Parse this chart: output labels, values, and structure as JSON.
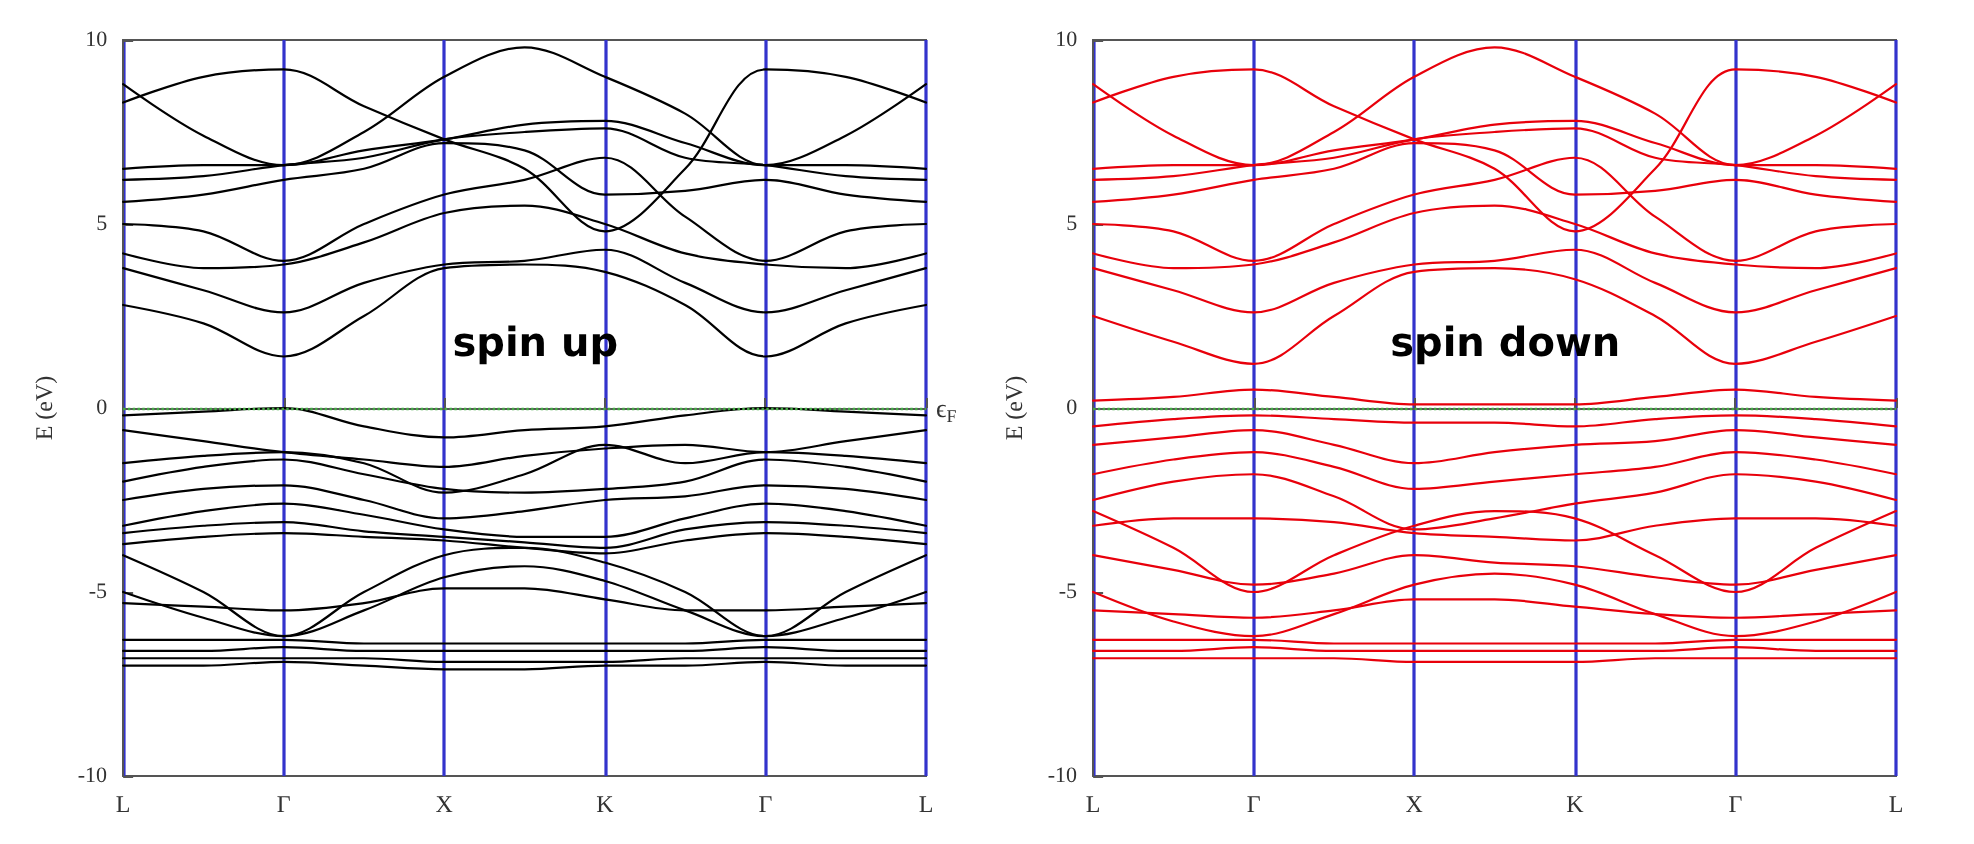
{
  "chart_data": [
    {
      "type": "line",
      "ylabel": "E (eV)",
      "line_style": "solid",
      "ylim": [
        -10,
        10
      ],
      "yticks": [
        -10,
        -5,
        0,
        5,
        10
      ],
      "categories": [
        "L",
        null,
        "Γ",
        null,
        "X",
        null,
        "K",
        null,
        "Γ",
        null,
        "L"
      ],
      "annotations": [
        "spin up"
      ],
      "grid": "x",
      "ref_lines": [
        {
          "axis": "y",
          "value": 0,
          "label": "ϵ$_{F}$",
          "color": "#44aa44",
          "line_style": "dotted"
        }
      ],
      "series": [
        {
          "color": "#000000",
          "values": [
            2.8,
            2.3,
            1.4,
            2.5,
            3.8,
            3.9,
            3.7,
            2.8,
            1.4,
            2.3,
            2.8
          ]
        },
        {
          "color": "#000000",
          "values": [
            3.8,
            3.2,
            2.6,
            3.4,
            3.9,
            4.0,
            4.3,
            3.4,
            2.6,
            3.2,
            3.8
          ]
        },
        {
          "color": "#000000",
          "values": [
            4.2,
            3.8,
            3.9,
            4.5,
            5.3,
            5.5,
            5.0,
            4.2,
            3.9,
            3.8,
            4.2
          ]
        },
        {
          "color": "#000000",
          "values": [
            5.0,
            4.8,
            4.0,
            5.0,
            5.8,
            6.2,
            6.8,
            5.2,
            4.0,
            4.8,
            5.0
          ]
        },
        {
          "color": "#000000",
          "values": [
            5.6,
            5.8,
            6.2,
            6.5,
            7.2,
            7.0,
            5.8,
            5.9,
            6.2,
            5.8,
            5.6
          ]
        },
        {
          "color": "#000000",
          "values": [
            6.2,
            6.3,
            6.6,
            6.8,
            7.3,
            7.5,
            7.6,
            6.8,
            6.6,
            6.3,
            6.2
          ]
        },
        {
          "color": "#000000",
          "values": [
            6.5,
            6.6,
            6.6,
            7.0,
            7.3,
            7.7,
            7.8,
            7.2,
            6.6,
            6.6,
            6.5
          ]
        },
        {
          "color": "#000000",
          "values": [
            8.3,
            9.0,
            9.2,
            8.2,
            7.3,
            6.5,
            4.8,
            6.5,
            9.2,
            9.0,
            8.3
          ]
        },
        {
          "color": "#000000",
          "values": [
            8.8,
            7.4,
            6.6,
            7.5,
            9.0,
            9.8,
            9.0,
            8.0,
            6.6,
            7.4,
            8.8
          ]
        },
        {
          "color": "#000000",
          "values": [
            -0.2,
            -0.1,
            0,
            -0.5,
            -0.8,
            -0.6,
            -0.5,
            -0.2,
            0,
            -0.1,
            -0.2
          ]
        },
        {
          "color": "#000000",
          "values": [
            -0.6,
            -0.9,
            -1.2,
            -1.4,
            -1.6,
            -1.3,
            -1.1,
            -1.0,
            -1.2,
            -0.9,
            -0.6
          ]
        },
        {
          "color": "#000000",
          "values": [
            -1.5,
            -1.3,
            -1.2,
            -1.5,
            -2.3,
            -1.8,
            -1.0,
            -1.5,
            -1.2,
            -1.3,
            -1.5
          ]
        },
        {
          "color": "#000000",
          "values": [
            -2.0,
            -1.6,
            -1.4,
            -1.8,
            -2.2,
            -2.3,
            -2.2,
            -2.0,
            -1.4,
            -1.6,
            -2.0
          ]
        },
        {
          "color": "#000000",
          "values": [
            -2.5,
            -2.2,
            -2.1,
            -2.5,
            -3.0,
            -2.8,
            -2.5,
            -2.4,
            -2.1,
            -2.2,
            -2.5
          ]
        },
        {
          "color": "#000000",
          "values": [
            -3.2,
            -2.8,
            -2.6,
            -2.9,
            -3.3,
            -3.5,
            -3.5,
            -3.0,
            -2.6,
            -2.8,
            -3.2
          ]
        },
        {
          "color": "#000000",
          "values": [
            -3.4,
            -3.2,
            -3.1,
            -3.35,
            -3.5,
            -3.65,
            -3.8,
            -3.3,
            -3.1,
            -3.2,
            -3.4
          ]
        },
        {
          "color": "#000000",
          "values": [
            -3.7,
            -3.5,
            -3.4,
            -3.5,
            -3.6,
            -3.8,
            -3.95,
            -3.6,
            -3.4,
            -3.5,
            -3.7
          ]
        },
        {
          "color": "#000000",
          "values": [
            -4.0,
            -5.0,
            -6.2,
            -5.0,
            -4.0,
            -3.8,
            -4.2,
            -5.0,
            -6.2,
            -5.0,
            -4.0
          ]
        },
        {
          "color": "#000000",
          "values": [
            -5.0,
            -5.7,
            -6.2,
            -5.5,
            -4.6,
            -4.3,
            -4.7,
            -5.5,
            -6.2,
            -5.7,
            -5.0
          ]
        },
        {
          "color": "#000000",
          "values": [
            -5.3,
            -5.4,
            -5.5,
            -5.3,
            -4.9,
            -4.9,
            -5.2,
            -5.5,
            -5.5,
            -5.4,
            -5.3
          ]
        },
        {
          "color": "#000000",
          "values": [
            -6.3,
            -6.3,
            -6.3,
            -6.4,
            -6.4,
            -6.4,
            -6.4,
            -6.4,
            -6.3,
            -6.3,
            -6.3
          ]
        },
        {
          "color": "#000000",
          "values": [
            -6.6,
            -6.6,
            -6.5,
            -6.6,
            -6.6,
            -6.6,
            -6.6,
            -6.6,
            -6.5,
            -6.6,
            -6.6
          ]
        },
        {
          "color": "#000000",
          "values": [
            -6.8,
            -6.8,
            -6.8,
            -6.8,
            -6.9,
            -6.9,
            -6.9,
            -6.8,
            -6.8,
            -6.8,
            -6.8
          ]
        },
        {
          "color": "#000000",
          "values": [
            -7.0,
            -7.0,
            -6.9,
            -7.0,
            -7.1,
            -7.1,
            -7.0,
            -7.0,
            -6.9,
            -7.0,
            -7.0
          ]
        }
      ]
    },
    {
      "type": "line",
      "ylabel": "E (eV)",
      "line_style": "solid",
      "ylim": [
        -10,
        10
      ],
      "yticks": [
        -10,
        -5,
        0,
        5,
        10
      ],
      "categories": [
        "L",
        null,
        "Γ",
        null,
        "X",
        null,
        "K",
        null,
        "Γ",
        null,
        "L"
      ],
      "annotations": [
        "spin down"
      ],
      "grid": "x",
      "ref_lines": [
        {
          "axis": "y",
          "value": 0,
          "color": "#44aa44",
          "line_style": "dotted"
        }
      ],
      "series": [
        {
          "color": "#e8000b",
          "values": [
            2.5,
            1.8,
            1.2,
            2.5,
            3.7,
            3.8,
            3.5,
            2.5,
            1.2,
            1.8,
            2.5
          ]
        },
        {
          "color": "#e8000b",
          "values": [
            3.8,
            3.2,
            2.6,
            3.4,
            3.9,
            4.0,
            4.3,
            3.4,
            2.6,
            3.2,
            3.8
          ]
        },
        {
          "color": "#e8000b",
          "values": [
            4.2,
            3.8,
            3.9,
            4.5,
            5.3,
            5.5,
            5.0,
            4.2,
            3.9,
            3.8,
            4.2
          ]
        },
        {
          "color": "#e8000b",
          "values": [
            5.0,
            4.8,
            4.0,
            5.0,
            5.8,
            6.2,
            6.8,
            5.2,
            4.0,
            4.8,
            5.0
          ]
        },
        {
          "color": "#e8000b",
          "values": [
            5.6,
            5.8,
            6.2,
            6.5,
            7.2,
            7.0,
            5.8,
            5.9,
            6.2,
            5.8,
            5.6
          ]
        },
        {
          "color": "#e8000b",
          "values": [
            6.2,
            6.3,
            6.6,
            6.8,
            7.3,
            7.5,
            7.6,
            6.8,
            6.6,
            6.3,
            6.2
          ]
        },
        {
          "color": "#e8000b",
          "values": [
            6.5,
            6.6,
            6.6,
            7.0,
            7.3,
            7.7,
            7.8,
            7.2,
            6.6,
            6.6,
            6.5
          ]
        },
        {
          "color": "#e8000b",
          "values": [
            8.3,
            9.0,
            9.2,
            8.2,
            7.3,
            6.5,
            4.8,
            6.5,
            9.2,
            9.0,
            8.3
          ]
        },
        {
          "color": "#e8000b",
          "values": [
            8.8,
            7.4,
            6.6,
            7.5,
            9.0,
            9.8,
            9.0,
            8.0,
            6.6,
            7.4,
            8.8
          ]
        },
        {
          "color": "#e8000b",
          "values": [
            0.2,
            0.3,
            0.5,
            0.3,
            0.1,
            0.1,
            0.1,
            0.3,
            0.5,
            0.3,
            0.2
          ]
        },
        {
          "color": "#e8000b",
          "values": [
            -0.5,
            -0.3,
            -0.2,
            -0.3,
            -0.4,
            -0.4,
            -0.5,
            -0.3,
            -0.2,
            -0.3,
            -0.5
          ]
        },
        {
          "color": "#e8000b",
          "values": [
            -1.0,
            -0.8,
            -0.6,
            -1.0,
            -1.5,
            -1.2,
            -1.0,
            -0.9,
            -0.6,
            -0.8,
            -1.0
          ]
        },
        {
          "color": "#e8000b",
          "values": [
            -1.8,
            -1.4,
            -1.2,
            -1.6,
            -2.2,
            -2.0,
            -1.8,
            -1.6,
            -1.2,
            -1.4,
            -1.8
          ]
        },
        {
          "color": "#e8000b",
          "values": [
            -2.5,
            -2.0,
            -1.8,
            -2.4,
            -3.3,
            -3.0,
            -2.6,
            -2.3,
            -1.8,
            -2.0,
            -2.5
          ]
        },
        {
          "color": "#e8000b",
          "values": [
            -3.2,
            -3.0,
            -3.0,
            -3.1,
            -3.4,
            -3.5,
            -3.6,
            -3.2,
            -3.0,
            -3.0,
            -3.2
          ]
        },
        {
          "color": "#e8000b",
          "values": [
            -2.8,
            -3.8,
            -5.0,
            -4.0,
            -3.2,
            -2.8,
            -3.0,
            -4.0,
            -5.0,
            -3.8,
            -2.8
          ]
        },
        {
          "color": "#e8000b",
          "values": [
            -4.0,
            -4.4,
            -4.8,
            -4.5,
            -4.0,
            -4.2,
            -4.3,
            -4.6,
            -4.8,
            -4.4,
            -4.0
          ]
        },
        {
          "color": "#e8000b",
          "values": [
            -5.0,
            -5.8,
            -6.2,
            -5.6,
            -4.8,
            -4.5,
            -4.8,
            -5.6,
            -6.2,
            -5.8,
            -5.0
          ]
        },
        {
          "color": "#e8000b",
          "values": [
            -5.5,
            -5.6,
            -5.7,
            -5.5,
            -5.2,
            -5.2,
            -5.4,
            -5.6,
            -5.7,
            -5.6,
            -5.5
          ]
        },
        {
          "color": "#e8000b",
          "values": [
            -6.3,
            -6.3,
            -6.3,
            -6.4,
            -6.4,
            -6.4,
            -6.4,
            -6.4,
            -6.3,
            -6.3,
            -6.3
          ]
        },
        {
          "color": "#e8000b",
          "values": [
            -6.6,
            -6.6,
            -6.5,
            -6.6,
            -6.6,
            -6.6,
            -6.6,
            -6.6,
            -6.5,
            -6.6,
            -6.6
          ]
        },
        {
          "color": "#e8000b",
          "values": [
            -6.8,
            -6.8,
            -6.8,
            -6.8,
            -6.9,
            -6.9,
            -6.9,
            -6.8,
            -6.8,
            -6.8,
            -6.8
          ]
        }
      ]
    }
  ]
}
